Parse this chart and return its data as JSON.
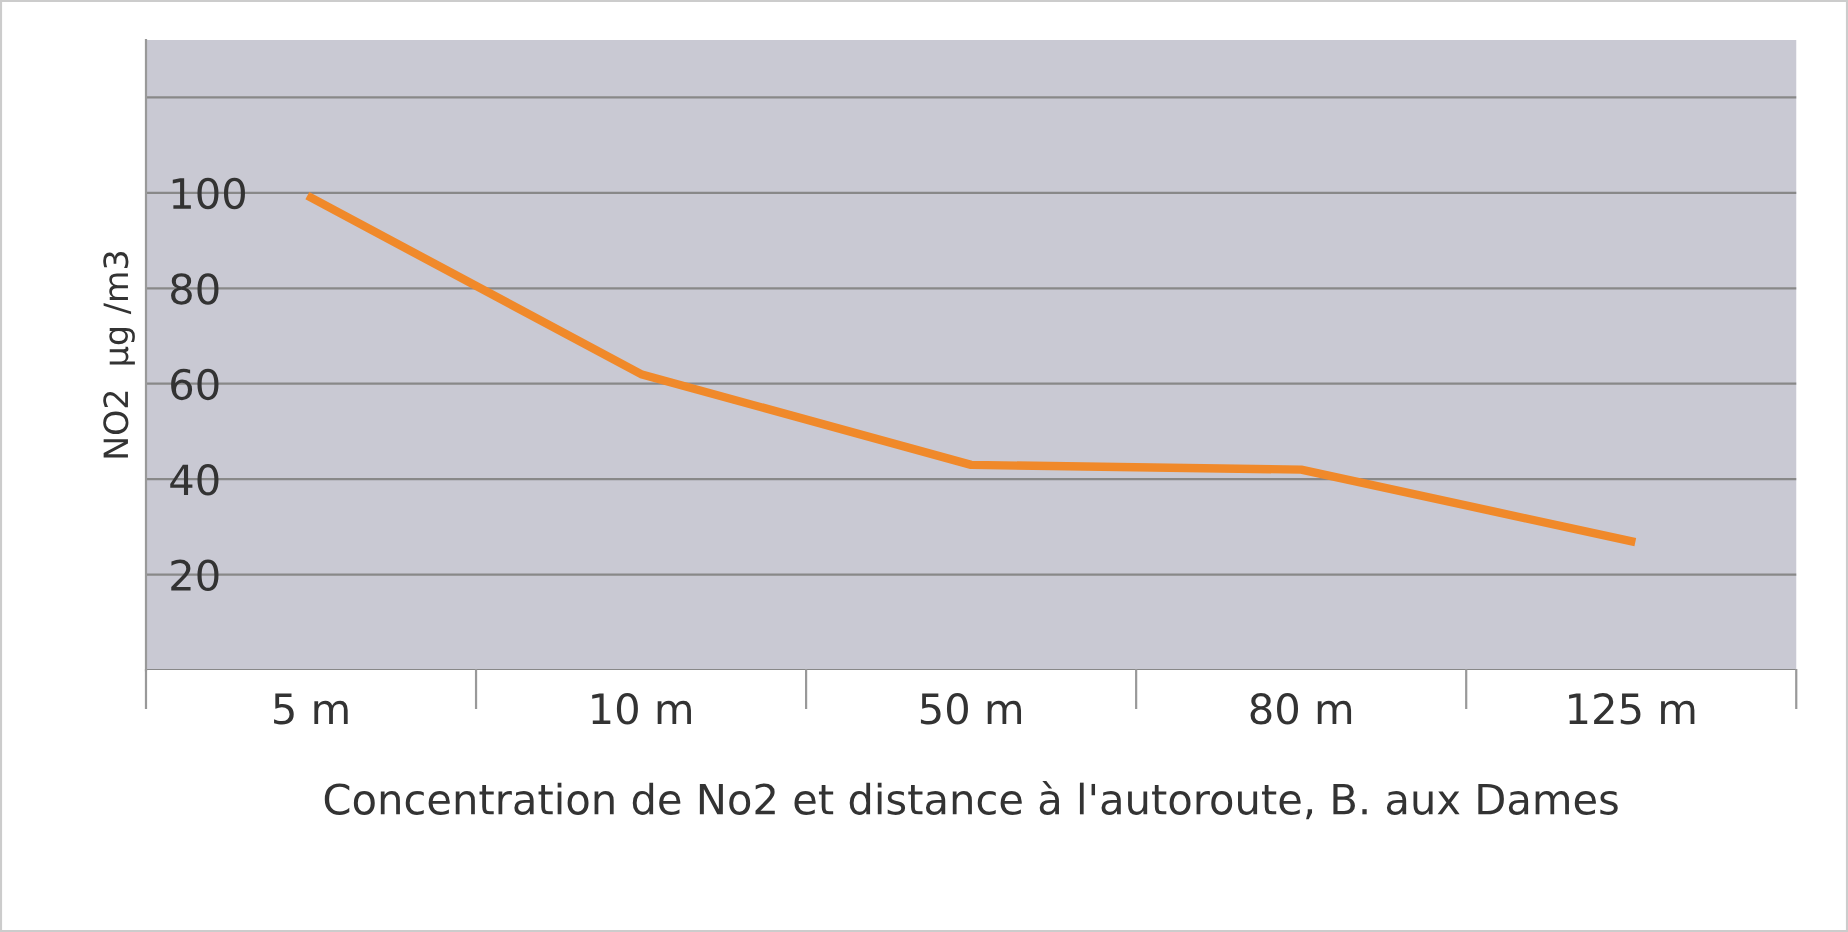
{
  "chart_data": {
    "type": "line",
    "xlabel": "Concentration de No2 et distance à l'autoroute, B. aux Dames",
    "ylabel": "NO2  µg /m3",
    "categories": [
      "5 m",
      "10 m",
      "50 m",
      "80 m",
      "125 m"
    ],
    "series": [
      {
        "color": "#f0892a",
        "values": [
          99,
          62,
          43,
          42,
          27
        ]
      }
    ],
    "ylim": [
      0,
      132
    ],
    "yticks": [
      {
        "value": 0,
        "label": null
      },
      20,
      40,
      60,
      80,
      100,
      {
        "value": 120,
        "label": null
      }
    ],
    "grid": "y",
    "legend": false,
    "marker": "none",
    "line_style": "solid"
  }
}
